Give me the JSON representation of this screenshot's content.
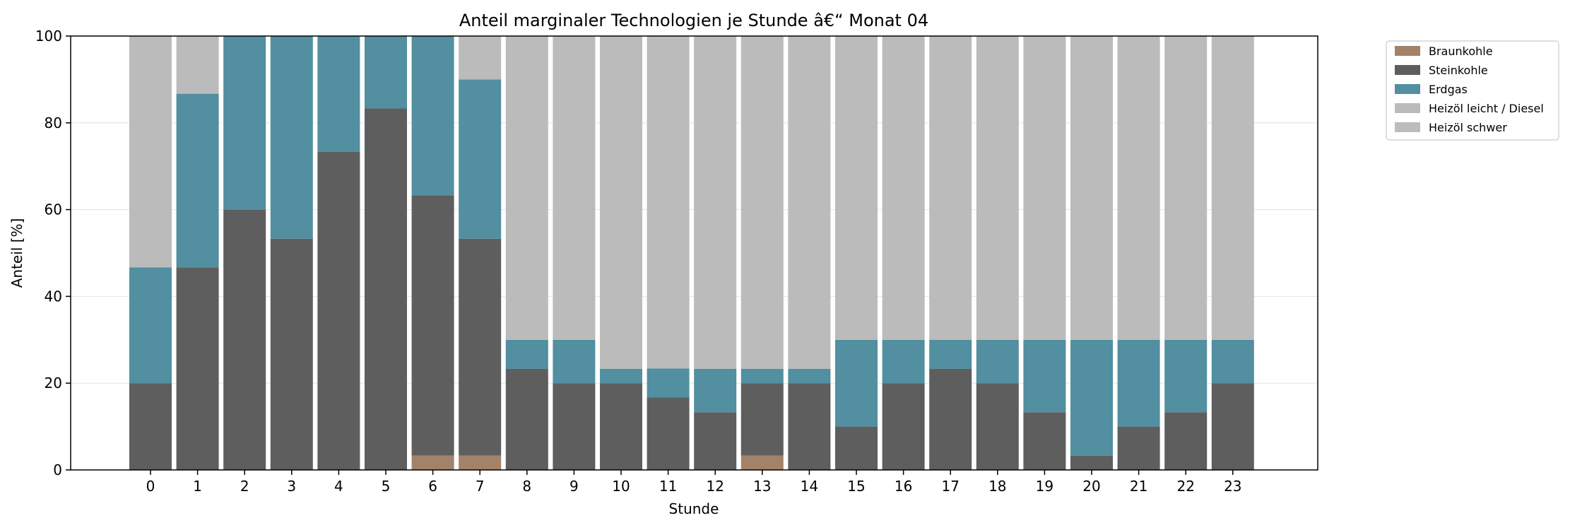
{
  "chart_data": {
    "type": "bar",
    "stacked": true,
    "title": "Anteil marginaler Technologien je Stunde â€“ Monat 04",
    "xlabel": "Stunde",
    "ylabel": "Anteil [%]",
    "ylim": [
      0,
      100
    ],
    "yticks": [
      "0",
      "20",
      "40",
      "60",
      "80",
      "100"
    ],
    "grid": "horizontal",
    "legend_position": "outside-top-right",
    "categories": [
      "0",
      "1",
      "2",
      "3",
      "4",
      "5",
      "6",
      "7",
      "8",
      "9",
      "10",
      "11",
      "12",
      "13",
      "14",
      "15",
      "16",
      "17",
      "18",
      "19",
      "20",
      "21",
      "22",
      "23"
    ],
    "series": [
      {
        "name": "Braunkohle",
        "color": "#a3826a",
        "values": [
          0,
          0,
          0,
          0,
          0,
          0,
          3.3,
          3.3,
          0,
          0,
          0,
          0,
          0,
          3.3,
          0,
          0,
          0,
          0,
          0,
          0,
          0,
          0,
          0,
          0
        ]
      },
      {
        "name": "Steinkohle",
        "color": "#5e5e5e",
        "values": [
          20,
          46.7,
          60,
          53.3,
          73.3,
          83.3,
          60,
          50,
          23.3,
          20,
          20,
          16.7,
          13.3,
          16.7,
          20,
          10,
          20,
          23.3,
          20,
          13.3,
          3.3,
          10,
          13.3,
          20
        ]
      },
      {
        "name": "Erdgas",
        "color": "#528fa0",
        "values": [
          26.7,
          40,
          40,
          46.7,
          26.7,
          16.7,
          36.7,
          36.7,
          6.7,
          10,
          3.3,
          6.7,
          10,
          3.3,
          3.3,
          20,
          10,
          6.7,
          10,
          16.7,
          26.7,
          20,
          16.7,
          10
        ]
      },
      {
        "name": "Heizöl leicht / Diesel",
        "color": "#bbbbbb",
        "values": [
          53.3,
          13.3,
          0,
          0,
          0,
          0,
          0,
          10,
          70,
          70,
          76.7,
          76.7,
          76.7,
          76.7,
          76.7,
          70,
          70,
          70,
          70,
          70,
          70,
          70,
          70,
          70
        ]
      },
      {
        "name": "Heizöl schwer",
        "color": "#bcbcbc",
        "values": [
          0,
          0,
          0,
          0,
          0,
          0,
          0,
          0,
          0,
          0,
          0,
          0,
          0,
          0,
          0,
          0,
          0,
          0,
          0,
          0,
          0,
          0,
          0,
          0
        ]
      }
    ]
  }
}
